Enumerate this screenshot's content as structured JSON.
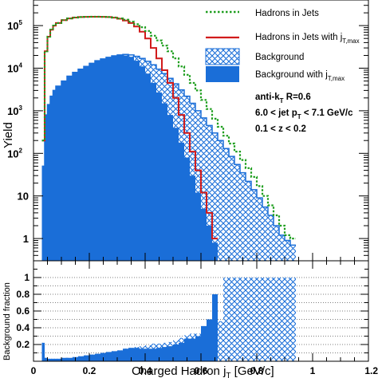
{
  "chart_data": [
    {
      "type": "area",
      "panel": "top",
      "ylabel": "Yield",
      "y_scale": "log",
      "ylim": [
        0.3,
        400000
      ],
      "xlim": [
        0,
        1.2
      ],
      "y_ticks": [
        {
          "base": "10",
          "exp": "5",
          "value": 100000
        },
        {
          "base": "10",
          "exp": "4",
          "value": 10000
        },
        {
          "base": "10",
          "exp": "3",
          "value": 1000
        },
        {
          "base": "10",
          "exp": "2",
          "value": 100
        },
        {
          "base": "10",
          "exp": "",
          "value": 10
        },
        {
          "base": "1",
          "exp": "",
          "value": 1
        }
      ],
      "legend_placement": "top-right",
      "legend": [
        {
          "label": "Hadrons in Jets",
          "sub": "",
          "style": "dotted-green"
        },
        {
          "label": "Hadrons in Jets with j",
          "sub": "T,max",
          "style": "line-red"
        },
        {
          "label": "Background",
          "sub": "",
          "style": "hatch-blue"
        },
        {
          "label": "Background with j",
          "sub": "T,max",
          "style": "fill-blue"
        }
      ],
      "annotations": [
        {
          "text": "anti-k",
          "sub": "T",
          "rest": " R=0.6"
        },
        {
          "text": "6.0 < jet p",
          "sub": "T",
          "rest": " < 7.1 GeV/c"
        },
        {
          "text": "0.1 < z < 0.2",
          "sub": "",
          "rest": ""
        }
      ],
      "x": [
        0.0,
        0.02,
        0.03,
        0.04,
        0.05,
        0.06,
        0.07,
        0.08,
        0.1,
        0.12,
        0.14,
        0.16,
        0.18,
        0.2,
        0.22,
        0.24,
        0.26,
        0.28,
        0.3,
        0.32,
        0.34,
        0.36,
        0.38,
        0.4,
        0.42,
        0.44,
        0.46,
        0.48,
        0.5,
        0.52,
        0.54,
        0.56,
        0.58,
        0.6,
        0.62,
        0.64,
        0.66,
        0.68,
        0.7,
        0.72,
        0.74,
        0.76,
        0.78,
        0.8,
        0.82,
        0.84,
        0.86,
        0.88,
        0.9,
        0.92,
        0.94
      ],
      "series": [
        {
          "name": "Hadrons in Jets",
          "color": "#1e9e1e",
          "values": [
            null,
            null,
            200,
            25000,
            55000,
            80000,
            100000,
            115000,
            135000,
            148000,
            155000,
            159000,
            161000,
            162000,
            162000,
            161000,
            159000,
            155000,
            148000,
            138000,
            124000,
            108000,
            92000,
            75000,
            58000,
            45000,
            34000,
            25000,
            17000,
            11000,
            7000,
            4500,
            3000,
            1800,
            1100,
            650,
            420,
            260,
            170,
            110,
            70,
            45,
            28,
            17,
            10,
            6,
            3.5,
            2,
            1.2,
            1,
            null
          ]
        },
        {
          "name": "Hadrons in Jets with j_T,max",
          "color": "#d11b1b",
          "values": [
            null,
            null,
            200,
            25000,
            55000,
            80000,
            100000,
            115000,
            135000,
            148000,
            155000,
            159000,
            161000,
            162000,
            162000,
            161000,
            159000,
            154000,
            145000,
            132000,
            115000,
            95000,
            72000,
            50000,
            30000,
            17000,
            9000,
            4500,
            2000,
            800,
            300,
            110,
            40,
            12,
            4,
            1,
            null,
            null,
            null,
            null,
            null,
            null,
            null,
            null,
            null,
            null,
            null,
            null,
            null,
            null,
            null
          ]
        },
        {
          "name": "Background",
          "color": "#1a6ed8",
          "values": [
            null,
            null,
            50,
            800,
            1400,
            2200,
            3000,
            3800,
            5000,
            6500,
            8000,
            9500,
            11000,
            13000,
            15000,
            16500,
            18000,
            19500,
            20500,
            21000,
            20500,
            19000,
            17000,
            14500,
            12000,
            9500,
            7500,
            5800,
            4300,
            3100,
            2200,
            1500,
            1000,
            680,
            450,
            300,
            200,
            130,
            85,
            55,
            35,
            22,
            14,
            9,
            5.5,
            3.5,
            2,
            1.2,
            0.9,
            0.7,
            null
          ]
        },
        {
          "name": "Background with j_T,max",
          "color": "#1a6ed8",
          "values": [
            null,
            null,
            50,
            800,
            1400,
            2200,
            3000,
            3800,
            5000,
            6500,
            8000,
            9500,
            11000,
            13000,
            15000,
            16500,
            18000,
            19500,
            20000,
            20000,
            18500,
            15000,
            11000,
            7500,
            4500,
            2700,
            1500,
            800,
            400,
            180,
            80,
            30,
            12,
            5,
            2,
            0.8,
            null,
            null,
            null,
            null,
            null,
            null,
            null,
            null,
            null,
            null,
            null,
            null,
            null,
            null,
            null
          ]
        }
      ]
    },
    {
      "type": "area",
      "panel": "bottom",
      "ylabel": "Background fraction",
      "xlabel": "Charged Hadron j",
      "xlabel_sub": "T",
      "xlabel_unit": " [GeV/c]",
      "xlim": [
        0,
        1.2
      ],
      "ylim": [
        0,
        1.2
      ],
      "y_ticks": [
        {
          "label": "1",
          "value": 1
        },
        {
          "label": "0.8",
          "value": 0.8
        },
        {
          "label": "0.6",
          "value": 0.6
        },
        {
          "label": "0.4",
          "value": 0.4
        },
        {
          "label": "0.2",
          "value": 0.2
        }
      ],
      "x_ticks": [
        {
          "label": "0",
          "value": 0
        },
        {
          "label": "0.2",
          "value": 0.2
        },
        {
          "label": "0.4",
          "value": 0.4
        },
        {
          "label": "0.6",
          "value": 0.6
        },
        {
          "label": "0.8",
          "value": 0.8
        },
        {
          "label": "1",
          "value": 1
        },
        {
          "label": "1.2",
          "value": 1.2
        }
      ],
      "grid_y": [
        0.1,
        0.2,
        0.3,
        0.4,
        0.5,
        0.6,
        0.7,
        0.8,
        0.9,
        1.0
      ],
      "x": [
        0.0,
        0.02,
        0.03,
        0.04,
        0.05,
        0.06,
        0.07,
        0.08,
        0.1,
        0.12,
        0.14,
        0.16,
        0.18,
        0.2,
        0.22,
        0.24,
        0.26,
        0.28,
        0.3,
        0.32,
        0.34,
        0.36,
        0.38,
        0.4,
        0.42,
        0.44,
        0.46,
        0.48,
        0.5,
        0.52,
        0.54,
        0.56,
        0.58,
        0.6,
        0.62,
        0.64,
        0.66,
        0.68,
        0.7,
        0.72,
        0.74,
        0.76,
        0.78,
        0.8,
        0.82,
        0.84,
        0.86,
        0.88,
        0.9,
        0.92,
        0.94
      ],
      "series": [
        {
          "name": "Background",
          "color": "#1a6ed8",
          "values": [
            null,
            null,
            0.22,
            0.04,
            0.03,
            0.03,
            0.03,
            0.03,
            0.04,
            0.04,
            0.05,
            0.06,
            0.07,
            0.08,
            0.09,
            0.1,
            0.11,
            0.12,
            0.13,
            0.15,
            0.16,
            0.17,
            0.18,
            0.19,
            0.21,
            0.21,
            0.22,
            0.23,
            0.25,
            0.28,
            0.31,
            0.33,
            0.33,
            0.38,
            0.41,
            0.46,
            0.48,
            1.0,
            1.0,
            1.0,
            1.0,
            1.0,
            1.0,
            1.0,
            1.0,
            1.0,
            1.0,
            1.0,
            1.0,
            1.0,
            null
          ]
        },
        {
          "name": "Background with j_T,max",
          "color": "#1a6ed8",
          "values": [
            null,
            null,
            0.22,
            0.04,
            0.03,
            0.03,
            0.03,
            0.03,
            0.04,
            0.04,
            0.05,
            0.06,
            0.07,
            0.08,
            0.09,
            0.1,
            0.11,
            0.12,
            0.13,
            0.15,
            0.16,
            0.16,
            0.15,
            0.15,
            0.15,
            0.16,
            0.17,
            0.18,
            0.2,
            0.22,
            0.27,
            0.27,
            0.3,
            0.42,
            0.5,
            0.8,
            null,
            null,
            null,
            null,
            null,
            null,
            null,
            null,
            null,
            null,
            null,
            null,
            null,
            null,
            null
          ]
        }
      ]
    }
  ]
}
